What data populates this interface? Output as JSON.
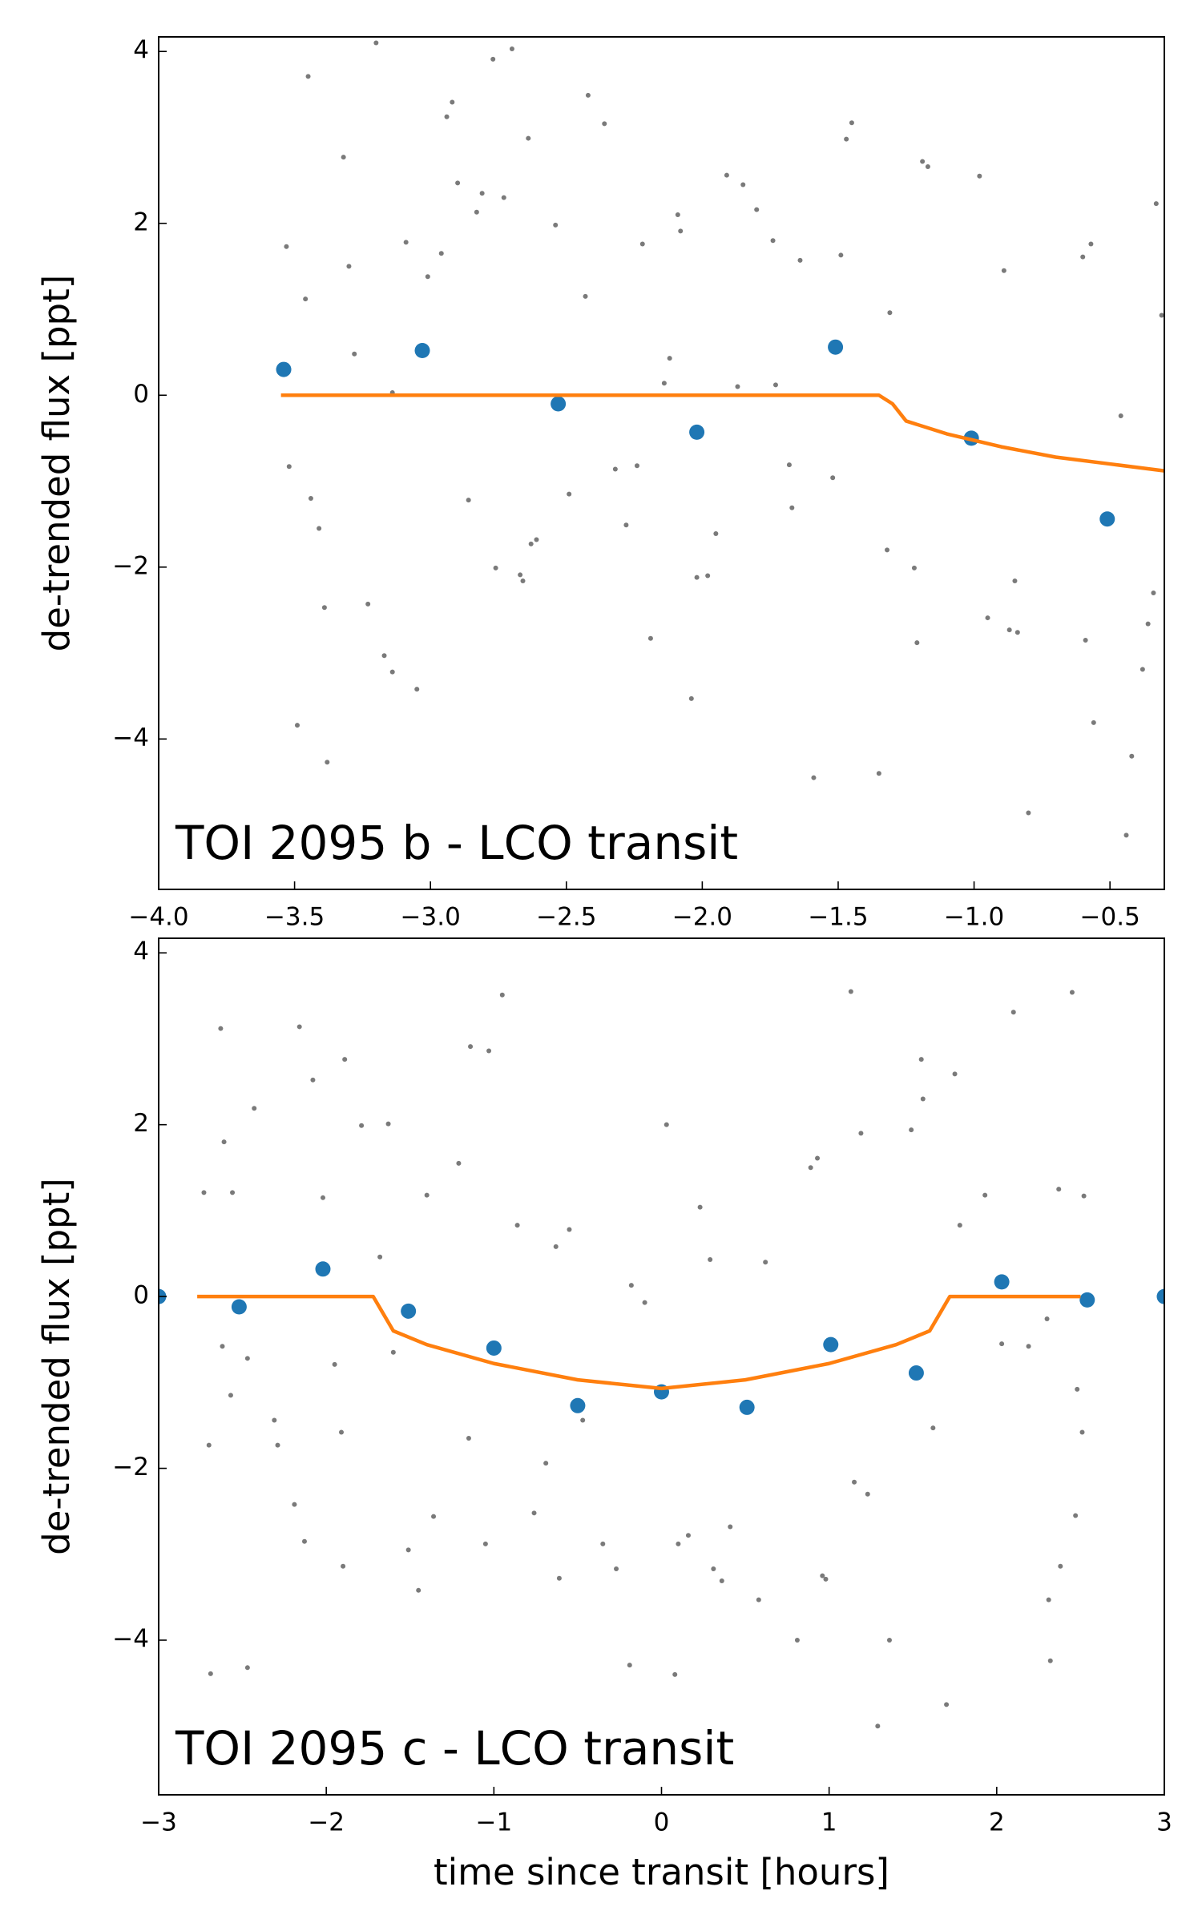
{
  "chart_data": [
    {
      "type": "scatter",
      "annotation": "TOI 2095 b - LCO transit",
      "ylabel": "de-trended flux [ppt]",
      "xlim": [
        -4.0,
        -0.3
      ],
      "ylim": [
        -5.75,
        4.17
      ],
      "xticks": [
        {
          "value": -4.0,
          "label": "−4.0"
        },
        {
          "value": -3.5,
          "label": "−3.5"
        },
        {
          "value": -3.0,
          "label": "−3.0"
        },
        {
          "value": -2.5,
          "label": "−2.5"
        },
        {
          "value": -2.0,
          "label": "−2.0"
        },
        {
          "value": -1.5,
          "label": "−1.5"
        },
        {
          "value": -1.0,
          "label": "−1.0"
        },
        {
          "value": -0.5,
          "label": "−0.5"
        }
      ],
      "yticks": [
        {
          "value": -4,
          "label": "−4"
        },
        {
          "value": -2,
          "label": "−2"
        },
        0,
        2,
        4
      ],
      "series": [
        {
          "type": "scatter",
          "color": "#4d4d4d",
          "x": [
            -3.45,
            -3.32,
            -3.2,
            -3.53,
            -3.46,
            -3.52,
            -3.44,
            -3.41,
            -3.39,
            -3.49,
            -3.38,
            -3.3,
            -3.28,
            -3.23,
            -3.17,
            -3.14,
            -3.05,
            -3.09,
            -2.96,
            -3.01,
            -2.94,
            -2.92,
            -2.9,
            -2.83,
            -2.81,
            -2.77,
            -2.7,
            -2.73,
            -2.64,
            -2.86,
            -2.76,
            -2.67,
            -2.66,
            -2.63,
            -2.61,
            -2.54,
            -2.43,
            -2.42,
            -2.36,
            -2.49,
            -2.32,
            -2.28,
            -2.24,
            -2.19,
            -2.22,
            -2.12,
            -2.09,
            -2.08,
            -2.04,
            -2.02,
            -1.98,
            -1.95,
            -1.91,
            -1.85,
            -1.8,
            -1.74,
            -1.64,
            -1.68,
            -1.67,
            -1.59,
            -1.47,
            -1.45,
            -1.49,
            -1.52,
            -1.35,
            -1.32,
            -1.22,
            -1.21,
            -1.19,
            -1.17,
            -1.31,
            -0.98,
            -0.89,
            -0.95,
            -0.87,
            -0.84,
            -0.8,
            -0.85,
            -0.6,
            -0.57,
            -0.59,
            -0.56,
            -0.46,
            -0.42,
            -0.44,
            -0.33,
            -0.31,
            -0.34,
            -0.38,
            -0.36,
            -3.14,
            -2.14,
            -1.87,
            -1.73
          ],
          "values": [
            3.71,
            2.77,
            4.1,
            1.73,
            1.12,
            -0.83,
            -1.2,
            -1.55,
            -2.47,
            -3.84,
            -4.27,
            1.5,
            0.48,
            -2.43,
            -3.03,
            -3.22,
            -3.42,
            1.78,
            1.65,
            1.38,
            3.24,
            3.41,
            2.47,
            2.13,
            2.35,
            3.91,
            4.03,
            2.3,
            2.99,
            -1.22,
            -2.01,
            -2.09,
            -2.16,
            -1.73,
            -1.68,
            1.98,
            1.15,
            3.49,
            3.16,
            -1.15,
            -0.86,
            -1.51,
            -0.82,
            -2.83,
            1.76,
            0.43,
            2.1,
            1.91,
            -3.53,
            -2.12,
            -2.1,
            -1.61,
            2.56,
            2.45,
            2.16,
            1.8,
            1.57,
            -0.81,
            -1.31,
            -4.45,
            2.98,
            3.17,
            1.63,
            -0.96,
            -4.4,
            -1.8,
            -2.01,
            -2.88,
            2.72,
            2.66,
            0.96,
            2.55,
            1.45,
            -2.59,
            -2.73,
            -2.76,
            -4.86,
            -2.16,
            1.61,
            1.76,
            -2.85,
            -3.81,
            -0.24,
            -4.2,
            -5.12,
            2.23,
            0.93,
            -2.3,
            -3.19,
            -2.66,
            0.03,
            0.14,
            0.1,
            0.12
          ]
        },
        {
          "type": "scatter",
          "color": "#1f77b4",
          "x": [
            -3.54,
            -3.03,
            -2.53,
            -2.02,
            -1.51,
            -1.01,
            -0.51
          ],
          "values": [
            0.3,
            0.52,
            -0.1,
            -0.43,
            0.56,
            -0.5,
            -1.44
          ]
        },
        {
          "type": "line",
          "color": "#ff7f0e",
          "x": [
            -3.55,
            -1.35,
            -1.3,
            -1.25,
            -1.1,
            -0.9,
            -0.7,
            -0.5,
            -0.3
          ],
          "values": [
            0,
            0,
            -0.1,
            -0.3,
            -0.45,
            -0.6,
            -0.72,
            -0.8,
            -0.88
          ]
        }
      ]
    },
    {
      "type": "scatter",
      "annotation": "TOI 2095 c - LCO transit",
      "ylabel": "de-trended flux [ppt]",
      "xlabel": "time since transit [hours]",
      "xlim": [
        -3,
        3
      ],
      "ylim": [
        -5.8,
        4.17
      ],
      "xticks": [
        {
          "value": -3,
          "label": "−3"
        },
        {
          "value": -2,
          "label": "−2"
        },
        {
          "value": -1,
          "label": "−1"
        },
        0,
        1,
        2,
        3
      ],
      "yticks": [
        {
          "value": -4,
          "label": "−4"
        },
        {
          "value": -2,
          "label": "−2"
        },
        0,
        2,
        4
      ],
      "series": [
        {
          "type": "scatter",
          "color": "#4d4d4d",
          "x": [
            -2.63,
            -2.61,
            -2.73,
            -2.56,
            -2.43,
            -2.62,
            -2.57,
            -2.7,
            -2.47,
            -2.47,
            -2.69,
            -2.31,
            -2.29,
            -2.16,
            -2.08,
            -2.02,
            -2.19,
            -2.13,
            -1.95,
            -1.91,
            -1.89,
            -1.79,
            -1.68,
            -1.9,
            -1.63,
            -1.6,
            -1.51,
            -1.45,
            -1.4,
            -1.36,
            -1.21,
            -1.14,
            -1.03,
            -0.95,
            -1.05,
            -1.15,
            -0.86,
            -0.76,
            -0.69,
            -0.61,
            -0.63,
            -0.55,
            -0.47,
            -0.35,
            -0.27,
            -0.19,
            -0.18,
            -0.1,
            0.03,
            0.08,
            0.1,
            0.16,
            0.23,
            0.29,
            0.31,
            0.36,
            0.41,
            0.58,
            0.62,
            0.81,
            0.89,
            0.93,
            0.96,
            0.98,
            1.15,
            1.13,
            1.19,
            1.23,
            1.29,
            1.36,
            1.49,
            1.55,
            1.56,
            1.62,
            1.7,
            1.75,
            1.78,
            1.93,
            2.1,
            2.19,
            2.31,
            2.32,
            2.37,
            2.45,
            2.48,
            2.52,
            2.51,
            2.47,
            2.38,
            2.3,
            2.03
          ],
          "values": [
            3.12,
            1.8,
            1.21,
            1.21,
            2.19,
            -0.58,
            -1.15,
            -1.73,
            -0.72,
            -4.32,
            -4.39,
            -1.44,
            -1.73,
            3.14,
            2.52,
            1.15,
            -2.42,
            -2.85,
            -0.79,
            -1.58,
            2.76,
            1.99,
            0.46,
            -3.14,
            2.01,
            -0.65,
            -2.95,
            -3.42,
            1.18,
            -2.56,
            1.55,
            2.91,
            2.86,
            3.51,
            -2.88,
            -1.65,
            0.83,
            -2.52,
            -1.94,
            -3.28,
            0.58,
            0.78,
            -1.44,
            -2.88,
            -3.17,
            -4.29,
            0.13,
            -0.07,
            2.0,
            -4.4,
            -2.88,
            -2.78,
            1.04,
            0.43,
            -3.17,
            -3.31,
            -2.68,
            -3.53,
            0.4,
            -4.0,
            1.5,
            1.61,
            -3.25,
            -3.29,
            -2.16,
            3.55,
            1.9,
            -2.3,
            -5.0,
            -4.0,
            1.94,
            2.76,
            2.3,
            -1.53,
            -4.75,
            2.59,
            0.83,
            1.18,
            3.31,
            -0.58,
            -3.53,
            -4.24,
            1.25,
            3.54,
            -1.08,
            1.17,
            -1.58,
            -2.55,
            -3.14,
            -0.26,
            -0.55
          ]
        },
        {
          "type": "scatter",
          "color": "#1f77b4",
          "x": [
            -3.0,
            -2.52,
            -2.02,
            -1.51,
            -1.0,
            -0.5,
            0.0,
            0.51,
            1.01,
            1.52,
            2.03,
            2.54,
            3.0
          ],
          "values": [
            0,
            -0.12,
            0.32,
            -0.17,
            -0.6,
            -1.27,
            -1.11,
            -1.29,
            -0.56,
            -0.89,
            0.17,
            -0.04,
            0
          ]
        },
        {
          "type": "line",
          "color": "#ff7f0e",
          "x": [
            -2.77,
            -1.72,
            -1.66,
            -1.6,
            -1.4,
            -1.0,
            -0.5,
            0,
            0.5,
            1.0,
            1.4,
            1.6,
            1.66,
            1.72,
            2.5
          ],
          "values": [
            0,
            0,
            -0.2,
            -0.4,
            -0.56,
            -0.78,
            -0.97,
            -1.07,
            -0.97,
            -0.78,
            -0.56,
            -0.4,
            -0.2,
            0,
            0
          ]
        }
      ]
    }
  ]
}
